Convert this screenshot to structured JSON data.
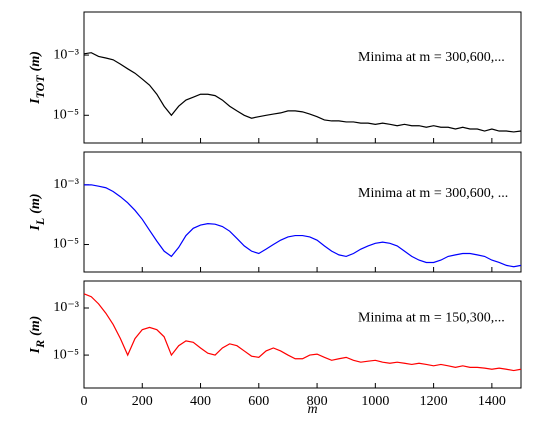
{
  "chart_data": [
    {
      "type": "line",
      "yscale": "log",
      "annotation": "Minima at m = 300,600,...",
      "ylabel_main": "I",
      "ylabel_sub": "TOT",
      "ylabel_tail": "(m)",
      "xlim": [
        0,
        1500
      ],
      "xticks": [
        0,
        200,
        400,
        600,
        800,
        1000,
        1200,
        1400
      ],
      "ylim": [
        1.2e-06,
        0.027
      ],
      "yticks": [
        {
          "value": 0.001,
          "label": "10⁻³"
        },
        {
          "value": 1e-05,
          "label": "10⁻⁵"
        }
      ],
      "x": [
        0,
        25,
        50,
        75,
        100,
        125,
        150,
        175,
        200,
        225,
        250,
        275,
        300,
        325,
        350,
        375,
        400,
        425,
        450,
        475,
        500,
        525,
        550,
        575,
        600,
        625,
        650,
        675,
        700,
        725,
        750,
        775,
        800,
        825,
        850,
        875,
        900,
        925,
        950,
        975,
        1000,
        1025,
        1050,
        1075,
        1100,
        1125,
        1150,
        1175,
        1200,
        1225,
        1250,
        1275,
        1300,
        1325,
        1350,
        1375,
        1400,
        1425,
        1450,
        1475,
        1500
      ],
      "series": [
        {
          "color": "#000000",
          "values": [
            0.0011,
            0.0012,
            0.0009,
            0.0008,
            0.0007,
            0.0005,
            0.00035,
            0.00025,
            0.00016,
            0.0001,
            5e-05,
            2e-05,
            1e-05,
            2e-05,
            3.2e-05,
            4e-05,
            5e-05,
            5e-05,
            4.5e-05,
            3.2e-05,
            2e-05,
            1.4e-05,
            1e-05,
            8e-06,
            9e-06,
            1e-05,
            1.1e-05,
            1.2e-05,
            1.4e-05,
            1.4e-05,
            1.3e-05,
            1.1e-05,
            9e-06,
            7e-06,
            6.5e-06,
            6.5e-06,
            6e-06,
            6e-06,
            5.5e-06,
            5.5e-06,
            5e-06,
            5.5e-06,
            5e-06,
            4.5e-06,
            5e-06,
            4.5e-06,
            4.5e-06,
            4e-06,
            4.5e-06,
            4e-06,
            4e-06,
            3.5e-06,
            4e-06,
            3.5e-06,
            3.5e-06,
            3e-06,
            3.5e-06,
            3e-06,
            3e-06,
            2.8e-06,
            3e-06
          ]
        }
      ]
    },
    {
      "type": "line",
      "yscale": "log",
      "annotation": "Minima at m = 300,600, ...",
      "ylabel_main": "I",
      "ylabel_sub": "L",
      "ylabel_tail": "(m)",
      "xlim": [
        0,
        1500
      ],
      "xticks": [
        0,
        200,
        400,
        600,
        800,
        1000,
        1200,
        1400
      ],
      "ylim": [
        1.2e-06,
        0.0126
      ],
      "yticks": [
        {
          "value": 0.001,
          "label": "10⁻³"
        },
        {
          "value": 1e-05,
          "label": "10⁻⁵"
        }
      ],
      "x": [
        0,
        25,
        50,
        75,
        100,
        125,
        150,
        175,
        200,
        225,
        250,
        275,
        300,
        325,
        350,
        375,
        400,
        425,
        450,
        475,
        500,
        525,
        550,
        575,
        600,
        625,
        650,
        675,
        700,
        725,
        750,
        775,
        800,
        825,
        850,
        875,
        900,
        925,
        950,
        975,
        1000,
        1025,
        1050,
        1075,
        1100,
        1125,
        1150,
        1175,
        1200,
        1225,
        1250,
        1275,
        1300,
        1325,
        1350,
        1375,
        1400,
        1425,
        1450,
        1475,
        1500
      ],
      "series": [
        {
          "color": "#0000ff",
          "values": [
            0.001,
            0.001,
            0.0009,
            0.0008,
            0.0006,
            0.0004,
            0.00025,
            0.00014,
            7e-05,
            3e-05,
            1.3e-05,
            6e-06,
            4e-06,
            8e-06,
            2e-05,
            3.5e-05,
            4.5e-05,
            5e-05,
            4.8e-05,
            4e-05,
            2.8e-05,
            1.6e-05,
            9e-06,
            6e-06,
            5e-06,
            7e-06,
            1e-05,
            1.4e-05,
            1.8e-05,
            2e-05,
            2e-05,
            1.8e-05,
            1.4e-05,
            9e-06,
            6e-06,
            4.5e-06,
            4e-06,
            5e-06,
            7e-06,
            9e-06,
            1.1e-05,
            1.2e-05,
            1.1e-05,
            9e-06,
            6e-06,
            4e-06,
            3e-06,
            2.5e-06,
            2.5e-06,
            3e-06,
            4e-06,
            4.5e-06,
            5e-06,
            5e-06,
            4.5e-06,
            4e-06,
            3e-06,
            2.5e-06,
            2e-06,
            1.8e-06,
            2e-06
          ]
        }
      ]
    },
    {
      "type": "line",
      "yscale": "log",
      "annotation": "Minima at m = 150,300,...",
      "ylabel_main": "I",
      "ylabel_sub": "R",
      "ylabel_tail": "(m)",
      "xlabel": "m",
      "xlim": [
        0,
        1500
      ],
      "xticks": [
        0,
        200,
        400,
        600,
        800,
        1000,
        1200,
        1400
      ],
      "ylim": [
        4e-07,
        0.014
      ],
      "yticks": [
        {
          "value": 0.001,
          "label": "10⁻³"
        },
        {
          "value": 1e-05,
          "label": "10⁻⁵"
        }
      ],
      "x": [
        0,
        25,
        50,
        75,
        100,
        125,
        150,
        175,
        200,
        225,
        250,
        275,
        300,
        325,
        350,
        375,
        400,
        425,
        450,
        475,
        500,
        525,
        550,
        575,
        600,
        625,
        650,
        675,
        700,
        725,
        750,
        775,
        800,
        825,
        850,
        875,
        900,
        925,
        950,
        975,
        1000,
        1025,
        1050,
        1075,
        1100,
        1125,
        1150,
        1175,
        1200,
        1225,
        1250,
        1275,
        1300,
        1325,
        1350,
        1375,
        1400,
        1425,
        1450,
        1475,
        1500
      ],
      "series": [
        {
          "color": "#ff0000",
          "values": [
            0.004,
            0.003,
            0.0015,
            0.0006,
            0.0002,
            5e-05,
            1e-05,
            5e-05,
            0.00012,
            0.00015,
            0.00012,
            6e-05,
            1e-05,
            2.5e-05,
            4e-05,
            3.5e-05,
            2e-05,
            1.2e-05,
            1e-05,
            2e-05,
            3e-05,
            2.5e-05,
            1.5e-05,
            9e-06,
            8e-06,
            1.5e-05,
            2e-05,
            1.5e-05,
            1e-05,
            7e-06,
            7e-06,
            1e-05,
            1.1e-05,
            8e-06,
            6e-06,
            7e-06,
            8e-06,
            6e-06,
            5e-06,
            5.5e-06,
            6e-06,
            5e-06,
            4.5e-06,
            5e-06,
            4.5e-06,
            4e-06,
            4.5e-06,
            4e-06,
            3.5e-06,
            4e-06,
            3.5e-06,
            3e-06,
            3.5e-06,
            3e-06,
            3e-06,
            2.8e-06,
            2.5e-06,
            2.8e-06,
            2.5e-06,
            2.2e-06,
            2.5e-06
          ]
        }
      ]
    }
  ]
}
